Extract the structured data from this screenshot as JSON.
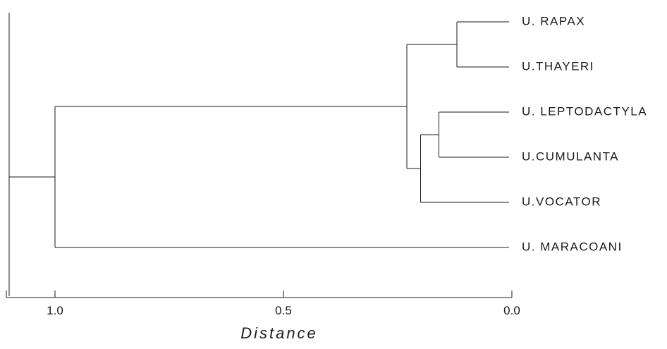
{
  "chart_data": {
    "type": "dendrogram",
    "xlabel": "Distance",
    "xlim": [
      1.1,
      0.0
    ],
    "ticks": [
      {
        "value": 1.0,
        "label": "1.0"
      },
      {
        "value": 0.5,
        "label": "0.5"
      },
      {
        "value": 0.0,
        "label": "0.0"
      }
    ],
    "leaves": [
      {
        "id": "rapax",
        "label": "U. RAPAX"
      },
      {
        "id": "thayeri",
        "label": "U.THAYERI"
      },
      {
        "id": "leptodactyla",
        "label": "U. LEPTODACTYLA"
      },
      {
        "id": "cumulanta",
        "label": "U.CUMULANTA"
      },
      {
        "id": "vocator",
        "label": "U.VOCATOR"
      },
      {
        "id": "maracoani",
        "label": "U. MARACOANI"
      }
    ],
    "merges": [
      {
        "id": "n1",
        "children": [
          "rapax",
          "thayeri"
        ],
        "distance": 0.12
      },
      {
        "id": "n2",
        "children": [
          "leptodactyla",
          "cumulanta"
        ],
        "distance": 0.16
      },
      {
        "id": "n3",
        "children": [
          "n2",
          "vocator"
        ],
        "distance": 0.2
      },
      {
        "id": "n4",
        "children": [
          "n1",
          "n3"
        ],
        "distance": 0.23
      },
      {
        "id": "n5",
        "children": [
          "n4",
          "maracoani"
        ],
        "distance": 1.0
      },
      {
        "id": "root",
        "children": [
          "n5"
        ],
        "distance": 1.1
      }
    ]
  }
}
